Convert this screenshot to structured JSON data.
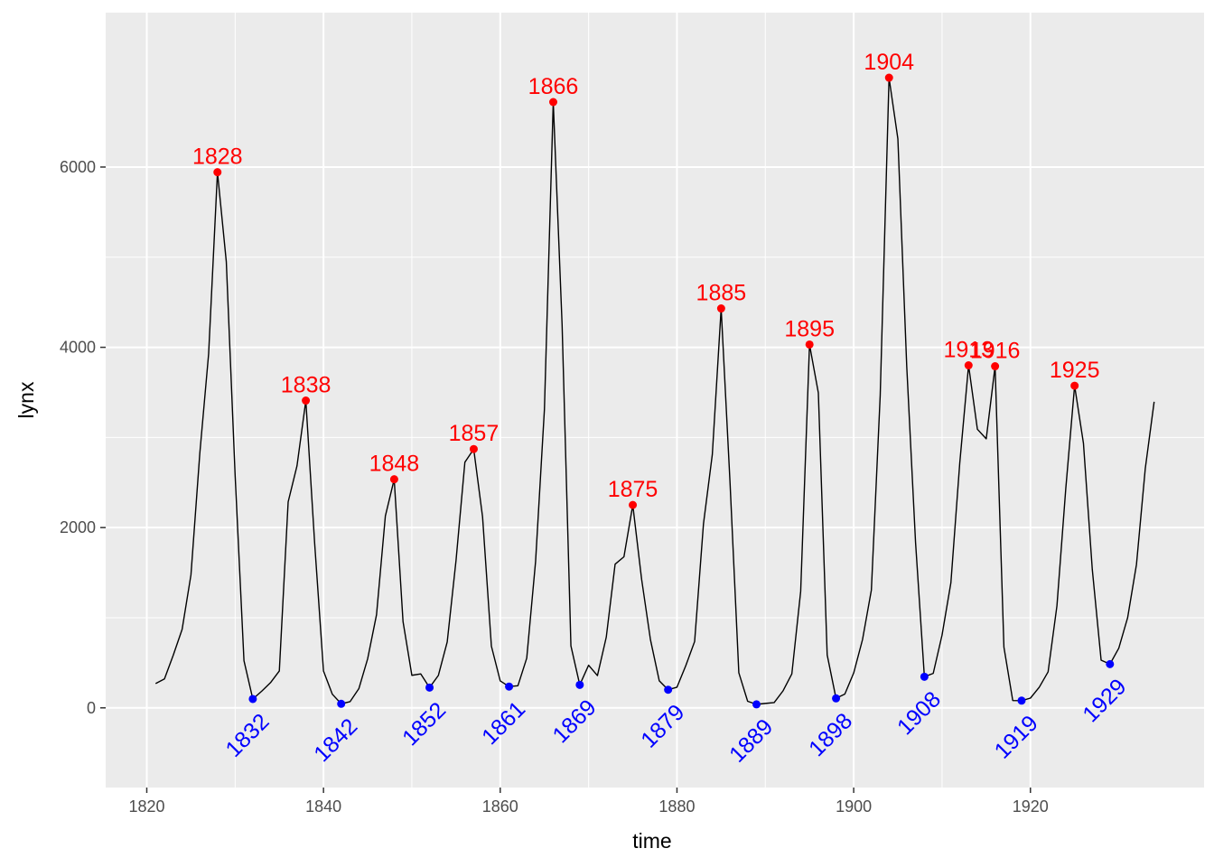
{
  "chart_data": {
    "type": "line",
    "title": "",
    "xlabel": "time",
    "ylabel": "lynx",
    "xlim": [
      1815.35,
      1939.65
    ],
    "ylim": [
      -884,
      7713
    ],
    "x_ticks": [
      1820,
      1840,
      1860,
      1880,
      1900,
      1920
    ],
    "y_ticks": [
      0,
      2000,
      4000,
      6000
    ],
    "x_tick_labels": [
      "1820",
      "1840",
      "1860",
      "1880",
      "1900",
      "1920"
    ],
    "y_tick_labels": [
      "0",
      "2000",
      "4000",
      "6000"
    ],
    "grid": true,
    "panel_background": "#EBEBEB",
    "grid_color": "#FFFFFF",
    "line_color": "#000000",
    "peak_color": "#FF0000",
    "trough_color": "#0000FF",
    "series": [
      {
        "x": [
          1821,
          1822,
          1823,
          1824,
          1825,
          1826,
          1827,
          1828,
          1829,
          1830,
          1831,
          1832,
          1833,
          1834,
          1835,
          1836,
          1837,
          1838,
          1839,
          1840,
          1841,
          1842,
          1843,
          1844,
          1845,
          1846,
          1847,
          1848,
          1849,
          1850,
          1851,
          1852,
          1853,
          1854,
          1855,
          1856,
          1857,
          1858,
          1859,
          1860,
          1861,
          1862,
          1863,
          1864,
          1865,
          1866,
          1867,
          1868,
          1869,
          1870,
          1871,
          1872,
          1873,
          1874,
          1875,
          1876,
          1877,
          1878,
          1879,
          1880,
          1881,
          1882,
          1883,
          1884,
          1885,
          1886,
          1887,
          1888,
          1889,
          1890,
          1891,
          1892,
          1893,
          1894,
          1895,
          1896,
          1897,
          1898,
          1899,
          1900,
          1901,
          1902,
          1903,
          1904,
          1905,
          1906,
          1907,
          1908,
          1909,
          1910,
          1911,
          1912,
          1913,
          1914,
          1915,
          1916,
          1917,
          1918,
          1919,
          1920,
          1921,
          1922,
          1923,
          1924,
          1925,
          1926,
          1927,
          1928,
          1929,
          1930,
          1931,
          1932,
          1933,
          1934
        ],
        "values": [
          269,
          321,
          585,
          871,
          1475,
          2821,
          3928,
          5943,
          4950,
          2577,
          523,
          98,
          184,
          279,
          409,
          2285,
          2685,
          3409,
          1824,
          409,
          151,
          45,
          68,
          213,
          546,
          1033,
          2129,
          2536,
          957,
          361,
          377,
          225,
          360,
          731,
          1638,
          2725,
          2871,
          2119,
          684,
          299,
          236,
          245,
          552,
          1623,
          3311,
          6721,
          4254,
          687,
          255,
          473,
          358,
          784,
          1594,
          1676,
          2251,
          1426,
          756,
          299,
          201,
          229,
          469,
          736,
          2042,
          2811,
          4431,
          2511,
          389,
          73,
          39,
          49,
          59,
          188,
          377,
          1292,
          4031,
          3495,
          587,
          105,
          153,
          387,
          758,
          1307,
          3465,
          6991,
          6313,
          3794,
          1836,
          345,
          382,
          808,
          1388,
          2713,
          3800,
          3091,
          2985,
          3790,
          674,
          81,
          80,
          108,
          229,
          399,
          1132,
          2432,
          3574,
          2935,
          1537,
          529,
          485,
          662,
          1000,
          1590,
          2657,
          3396
        ]
      }
    ],
    "peaks": [
      {
        "label": "1828",
        "x": 1828,
        "y": 5943
      },
      {
        "label": "1838",
        "x": 1838,
        "y": 3409
      },
      {
        "label": "1848",
        "x": 1848,
        "y": 2536
      },
      {
        "label": "1857",
        "x": 1857,
        "y": 2871
      },
      {
        "label": "1866",
        "x": 1866,
        "y": 6721
      },
      {
        "label": "1875",
        "x": 1875,
        "y": 2251
      },
      {
        "label": "1885",
        "x": 1885,
        "y": 4431
      },
      {
        "label": "1895",
        "x": 1895,
        "y": 4031
      },
      {
        "label": "1904",
        "x": 1904,
        "y": 6991
      },
      {
        "label": "1913",
        "x": 1913,
        "y": 3800
      },
      {
        "label": "1916",
        "x": 1916,
        "y": 3790
      },
      {
        "label": "1925",
        "x": 1925,
        "y": 3574
      }
    ],
    "troughs": [
      {
        "label": "1832",
        "x": 1832,
        "y": 98
      },
      {
        "label": "1842",
        "x": 1842,
        "y": 45
      },
      {
        "label": "1852",
        "x": 1852,
        "y": 225
      },
      {
        "label": "1861",
        "x": 1861,
        "y": 236
      },
      {
        "label": "1869",
        "x": 1869,
        "y": 255
      },
      {
        "label": "1879",
        "x": 1879,
        "y": 201
      },
      {
        "label": "1889",
        "x": 1889,
        "y": 39
      },
      {
        "label": "1898",
        "x": 1898,
        "y": 105
      },
      {
        "label": "1908",
        "x": 1908,
        "y": 345
      },
      {
        "label": "1919",
        "x": 1919,
        "y": 80
      },
      {
        "label": "1929",
        "x": 1929,
        "y": 485
      }
    ]
  }
}
